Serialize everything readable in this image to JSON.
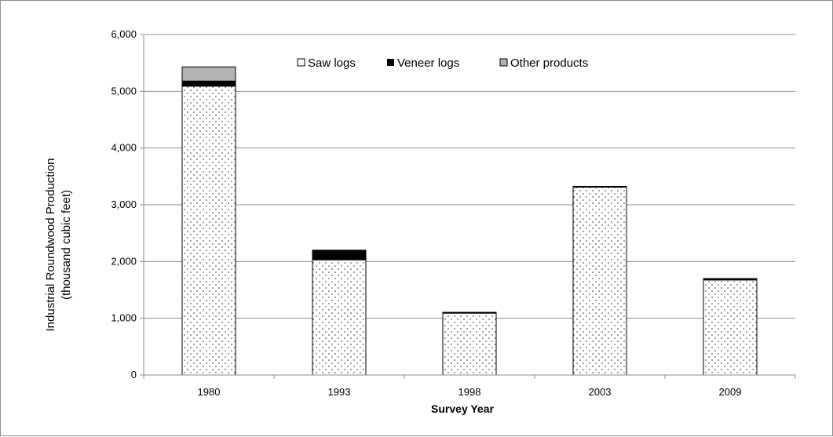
{
  "chart_data": {
    "type": "bar",
    "stacked": true,
    "categories": [
      "1980",
      "1993",
      "1998",
      "2003",
      "2009"
    ],
    "series": [
      {
        "name": "Saw logs",
        "values": [
          5090,
          2030,
          1090,
          3310,
          1675
        ],
        "fill": "dotted"
      },
      {
        "name": "Veneer logs",
        "values": [
          90,
          170,
          15,
          15,
          25
        ],
        "color": "#000000"
      },
      {
        "name": "Other products",
        "values": [
          250,
          0,
          0,
          0,
          0
        ],
        "color": "#b2b2b2"
      }
    ],
    "xlabel": "Survey Year",
    "ylabel": [
      "Industrial Roundwood Production",
      "(thousand cubic feet)"
    ],
    "ylim": [
      0,
      6000
    ],
    "yticks": [
      "0",
      "1,000",
      "2,000",
      "3,000",
      "4,000",
      "5,000",
      "6,000"
    ],
    "grid": true,
    "legend_position": "top"
  }
}
